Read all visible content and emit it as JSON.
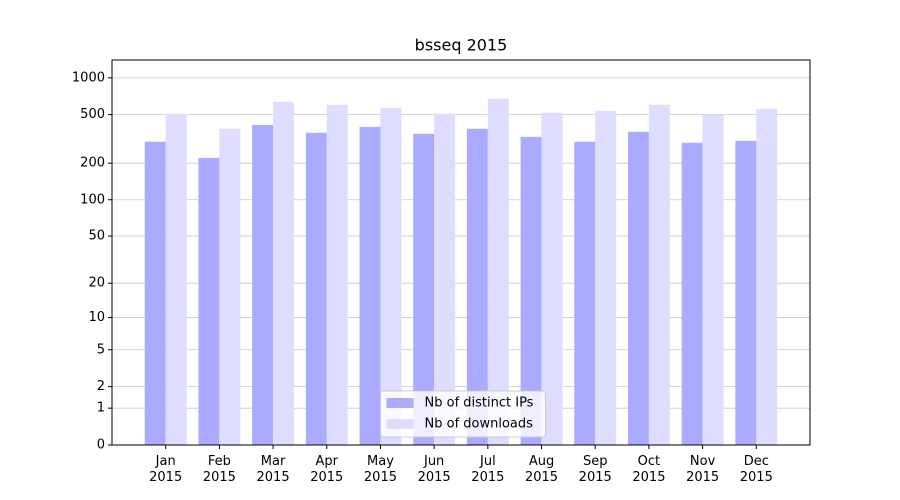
{
  "chart_data": {
    "type": "bar",
    "title": "bsseq 2015",
    "categories": [
      "Jan\n2015",
      "Feb\n2015",
      "Mar\n2015",
      "Apr\n2015",
      "May\n2015",
      "Jun\n2015",
      "Jul\n2015",
      "Aug\n2015",
      "Sep\n2015",
      "Oct\n2015",
      "Nov\n2015",
      "Dec\n2015"
    ],
    "series": [
      {
        "name": "Nb of distinct IPs",
        "color": "#aaaaff",
        "values": [
          300,
          221,
          412,
          355,
          397,
          348,
          383,
          329,
          300,
          362,
          294,
          305
        ]
      },
      {
        "name": "Nb of downloads",
        "color": "#ddddff",
        "values": [
          508,
          383,
          637,
          602,
          568,
          508,
          675,
          518,
          537,
          602,
          498,
          557
        ]
      }
    ],
    "yscale": "log1p",
    "ylim": [
      0,
      1400
    ],
    "yticks": [
      0,
      1,
      2,
      5,
      10,
      20,
      50,
      100,
      200,
      500,
      1000
    ],
    "grid": true,
    "legend": "lower center"
  }
}
